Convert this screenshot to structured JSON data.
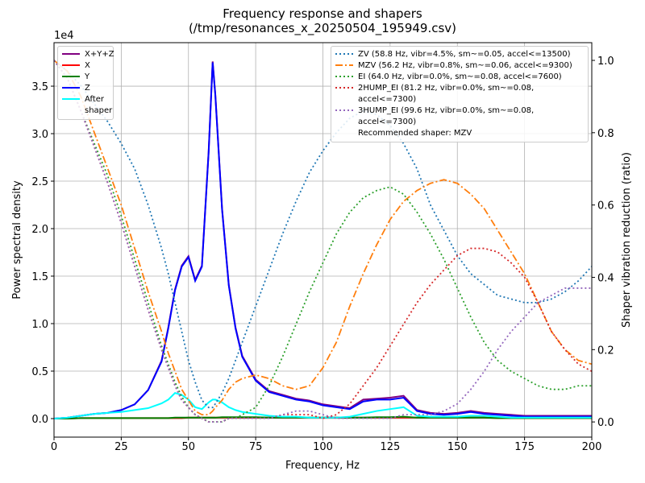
{
  "chart_data": {
    "type": "line",
    "title": "Frequency response and shapers",
    "subtitle": "(/tmp/resonances_x_20250504_195949.csv)",
    "xlabel": "Frequency, Hz",
    "ylabel": "Power spectral density",
    "y2label": "Shaper vibration reduction (ratio)",
    "y_offset_label": "1e4",
    "grid": true,
    "xlim": [
      0,
      200
    ],
    "xticks": [
      0,
      25,
      50,
      75,
      100,
      125,
      150,
      175,
      200
    ],
    "ylim": [
      -0.195,
      3.958
    ],
    "yticks": [
      {
        "value": 0,
        "label": "0.0"
      },
      {
        "value": 0.5,
        "label": "0.5"
      },
      {
        "value": 1,
        "label": "1.0"
      },
      {
        "value": 1.5,
        "label": "1.5"
      },
      {
        "value": 2,
        "label": "2.0"
      },
      {
        "value": 2.5,
        "label": "2.5"
      },
      {
        "value": 3,
        "label": "3.0"
      },
      {
        "value": 3.5,
        "label": "3.5"
      }
    ],
    "y2lim": [
      -0.042,
      1.049
    ],
    "y2ticks": [
      {
        "value": 0,
        "label": "0.0"
      },
      {
        "value": 0.2,
        "label": "0.2"
      },
      {
        "value": 0.4,
        "label": "0.4"
      },
      {
        "value": 0.6,
        "label": "0.6"
      },
      {
        "value": 0.8,
        "label": "0.8"
      },
      {
        "value": 1,
        "label": "1.0"
      }
    ],
    "legend_note": "Recommended shaper: MZV",
    "x": [
      0,
      5,
      10,
      15,
      20,
      25,
      30,
      35,
      40,
      42.5,
      45,
      47.5,
      50,
      52.5,
      55,
      57.5,
      59,
      60,
      62.5,
      65,
      67.5,
      70,
      75,
      80,
      85,
      90,
      95,
      100,
      105,
      110,
      115,
      120,
      125,
      130,
      135,
      140,
      145,
      150,
      155,
      160,
      165,
      170,
      175,
      180,
      185,
      190,
      195,
      200
    ],
    "series": [
      {
        "name": "X+Y+Z",
        "color": "#800080",
        "style": "solid",
        "axis": "y",
        "legend": "left",
        "values": [
          0,
          0.01,
          0.03,
          0.05,
          0.06,
          0.09,
          0.15,
          0.3,
          0.61,
          0.96,
          1.36,
          1.61,
          1.71,
          1.46,
          1.61,
          2.81,
          3.76,
          3.41,
          2.21,
          1.41,
          0.96,
          0.66,
          0.41,
          0.29,
          0.25,
          0.21,
          0.19,
          0.15,
          0.13,
          0.11,
          0.2,
          0.21,
          0.22,
          0.24,
          0.09,
          0.06,
          0.05,
          0.06,
          0.08,
          0.06,
          0.05,
          0.04,
          0.03,
          0.03,
          0.03,
          0.03,
          0.03,
          0.03
        ]
      },
      {
        "name": "X",
        "color": "#ff0000",
        "style": "solid",
        "axis": "y",
        "legend": "left",
        "values": [
          0,
          0,
          0.005,
          0.005,
          0.005,
          0.005,
          0.005,
          0.005,
          0.005,
          0.005,
          0.005,
          0.005,
          0.01,
          0.01,
          0.01,
          0.01,
          0.01,
          0.01,
          0.01,
          0.01,
          0.01,
          0.01,
          0.01,
          0.01,
          0.01,
          0.01,
          0.01,
          0.01,
          0.01,
          0.01,
          0.01,
          0.01,
          0.01,
          0.01,
          0.01,
          0.01,
          0.01,
          0.01,
          0.01,
          0.01,
          0.005,
          0.005,
          0.005,
          0.005,
          0.005,
          0.005,
          0.005,
          0.005
        ]
      },
      {
        "name": "Y",
        "color": "#008000",
        "style": "solid",
        "axis": "y",
        "legend": "left",
        "values": [
          0,
          0,
          0.005,
          0.005,
          0.005,
          0.005,
          0.005,
          0.005,
          0.005,
          0.005,
          0.01,
          0.01,
          0.01,
          0.01,
          0.01,
          0.01,
          0.01,
          0.01,
          0.015,
          0.015,
          0.015,
          0.015,
          0.015,
          0.01,
          0.01,
          0.01,
          0.01,
          0.01,
          0.01,
          0.01,
          0.01,
          0.015,
          0.015,
          0.02,
          0.01,
          0.01,
          0.01,
          0.01,
          0.01,
          0.01,
          0.005,
          0.005,
          0.005,
          0.005,
          0.005,
          0.005,
          0.005,
          0.005
        ]
      },
      {
        "name": "Z",
        "color": "#0000ff",
        "style": "solid",
        "axis": "y",
        "legend": "left",
        "values": [
          0,
          0.01,
          0.03,
          0.05,
          0.06,
          0.09,
          0.15,
          0.3,
          0.6,
          0.95,
          1.35,
          1.6,
          1.7,
          1.45,
          1.6,
          2.8,
          3.75,
          3.4,
          2.2,
          1.4,
          0.95,
          0.65,
          0.4,
          0.28,
          0.24,
          0.2,
          0.18,
          0.14,
          0.12,
          0.1,
          0.18,
          0.2,
          0.2,
          0.22,
          0.08,
          0.05,
          0.04,
          0.05,
          0.07,
          0.05,
          0.04,
          0.03,
          0.02,
          0.02,
          0.02,
          0.02,
          0.02,
          0.02
        ]
      },
      {
        "name": "After shaper",
        "color": "#00ffff",
        "style": "solid",
        "axis": "y",
        "legend": "left",
        "values": [
          0,
          0.01,
          0.03,
          0.05,
          0.06,
          0.07,
          0.09,
          0.11,
          0.16,
          0.2,
          0.27,
          0.25,
          0.2,
          0.12,
          0.1,
          0.17,
          0.2,
          0.2,
          0.17,
          0.12,
          0.09,
          0.07,
          0.05,
          0.03,
          0.02,
          0.02,
          0.01,
          0.01,
          0.01,
          0.02,
          0.05,
          0.08,
          0.1,
          0.12,
          0.03,
          0.02,
          0.02,
          0.02,
          0.03,
          0.03,
          0.02,
          0.01,
          0.01,
          0.01,
          0.01,
          0.01,
          0.01,
          0.01
        ]
      },
      {
        "name": "ZV (58.8 Hz, vibr=4.5%, sm~=0.05, accel<=13500)",
        "color": "#1f77b4",
        "style": "dotted",
        "axis": "y2",
        "legend": "right",
        "values": [
          1.0,
          0.97,
          0.93,
          0.88,
          0.83,
          0.77,
          0.7,
          0.6,
          0.48,
          0.41,
          0.33,
          0.25,
          0.17,
          0.11,
          0.06,
          0.04,
          0.04,
          0.05,
          0.08,
          0.12,
          0.17,
          0.22,
          0.32,
          0.42,
          0.52,
          0.61,
          0.69,
          0.75,
          0.8,
          0.84,
          0.86,
          0.85,
          0.82,
          0.77,
          0.7,
          0.6,
          0.53,
          0.46,
          0.41,
          0.38,
          0.35,
          0.34,
          0.33,
          0.33,
          0.34,
          0.36,
          0.39,
          0.43
        ]
      },
      {
        "name": "MZV (56.2 Hz, vibr=0.8%, sm~=0.06, accel<=9300)",
        "color": "#ff7f0e",
        "style": "dashdot",
        "axis": "y2",
        "legend": "right",
        "values": [
          1.0,
          0.97,
          0.9,
          0.8,
          0.7,
          0.6,
          0.48,
          0.36,
          0.25,
          0.19,
          0.14,
          0.09,
          0.06,
          0.03,
          0.02,
          0.02,
          0.03,
          0.04,
          0.06,
          0.09,
          0.11,
          0.12,
          0.13,
          0.12,
          0.1,
          0.09,
          0.1,
          0.15,
          0.22,
          0.32,
          0.41,
          0.49,
          0.56,
          0.61,
          0.64,
          0.66,
          0.67,
          0.66,
          0.63,
          0.59,
          0.53,
          0.47,
          0.41,
          0.33,
          0.25,
          0.2,
          0.17,
          0.16
        ]
      },
      {
        "name": "EI (64.0 Hz, vibr=0.0%, sm~=0.08, accel<=7600)",
        "color": "#2ca02c",
        "style": "dotted",
        "axis": "y2",
        "legend": "right",
        "values": [
          1.0,
          0.95,
          0.86,
          0.77,
          0.68,
          0.57,
          0.45,
          0.33,
          0.21,
          0.16,
          0.11,
          0.07,
          0.04,
          0.02,
          0.01,
          0.0,
          0.0,
          0.0,
          0.0,
          0.01,
          0.01,
          0.02,
          0.04,
          0.1,
          0.18,
          0.27,
          0.36,
          0.44,
          0.52,
          0.58,
          0.62,
          0.64,
          0.65,
          0.63,
          0.58,
          0.52,
          0.45,
          0.37,
          0.29,
          0.22,
          0.17,
          0.14,
          0.12,
          0.1,
          0.09,
          0.09,
          0.1,
          0.1
        ]
      },
      {
        "name": "2HUMP_EI (81.2 Hz, vibr=0.0%, sm~=0.08, accel<=7300)",
        "color": "#d62728",
        "style": "dotted",
        "axis": "y2",
        "legend": "right",
        "values": [
          1.0,
          0.95,
          0.86,
          0.76,
          0.66,
          0.55,
          0.43,
          0.31,
          0.2,
          0.15,
          0.1,
          0.06,
          0.04,
          0.02,
          0.01,
          0.0,
          0.0,
          0.0,
          0.0,
          0.01,
          0.01,
          0.01,
          0.01,
          0.01,
          0.02,
          0.02,
          0.02,
          0.01,
          0.02,
          0.05,
          0.1,
          0.15,
          0.21,
          0.27,
          0.33,
          0.38,
          0.42,
          0.46,
          0.48,
          0.48,
          0.47,
          0.44,
          0.4,
          0.33,
          0.25,
          0.2,
          0.16,
          0.14
        ]
      },
      {
        "name": "3HUMP_EI (99.6 Hz, vibr=0.0%, sm~=0.08, accel<=7300)",
        "color": "#9467bd",
        "style": "dotted",
        "axis": "y2",
        "legend": "right",
        "values": [
          1.0,
          0.95,
          0.86,
          0.76,
          0.66,
          0.55,
          0.43,
          0.31,
          0.2,
          0.15,
          0.1,
          0.06,
          0.04,
          0.02,
          0.01,
          0.0,
          0.0,
          0.0,
          0.0,
          0.01,
          0.01,
          0.01,
          0.01,
          0.01,
          0.02,
          0.03,
          0.03,
          0.02,
          0.01,
          0.01,
          0.01,
          0.01,
          0.01,
          0.02,
          0.02,
          0.02,
          0.03,
          0.05,
          0.09,
          0.14,
          0.2,
          0.25,
          0.29,
          0.33,
          0.35,
          0.37,
          0.37,
          0.37
        ]
      }
    ]
  }
}
